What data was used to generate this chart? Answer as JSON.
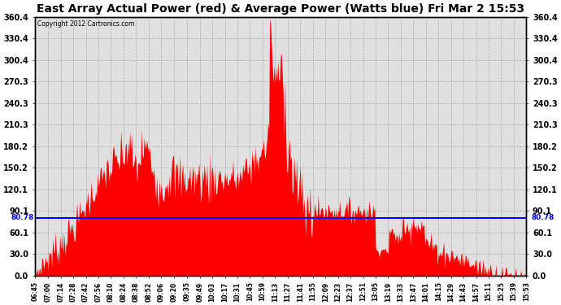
{
  "title": "East Array Actual Power (red) & Average Power (Watts blue) Fri Mar 2 15:53",
  "copyright": "Copyright 2012 Cartronics.com",
  "avg_power": 80.78,
  "ymin": 0.0,
  "ymax": 360.4,
  "yticks": [
    0.0,
    30.0,
    60.1,
    90.1,
    120.1,
    150.2,
    180.2,
    210.3,
    240.3,
    270.3,
    300.4,
    330.4,
    360.4
  ],
  "ytick_labels": [
    "0.0",
    "30.0",
    "60.1",
    "90.1",
    "120.1",
    "150.2",
    "180.2",
    "210.3",
    "240.3",
    "270.3",
    "300.4",
    "330.4",
    "360.4"
  ],
  "time_labels": [
    "06:45",
    "07:00",
    "07:14",
    "07:28",
    "07:42",
    "07:56",
    "08:10",
    "08:24",
    "08:38",
    "08:52",
    "09:06",
    "09:20",
    "09:35",
    "09:49",
    "10:03",
    "10:17",
    "10:31",
    "10:45",
    "10:59",
    "11:13",
    "11:27",
    "11:41",
    "11:55",
    "12:09",
    "12:23",
    "12:37",
    "12:51",
    "13:05",
    "13:19",
    "13:33",
    "13:47",
    "14:01",
    "14:15",
    "14:29",
    "14:43",
    "14:57",
    "15:11",
    "15:25",
    "15:39",
    "15:53"
  ],
  "line_color": "#0000ff",
  "fill_color": "#ff0000",
  "bg_color": "#ffffff",
  "grid_color": "#aaaaaa",
  "title_fontsize": 10,
  "avg_label": "80.78",
  "border_color": "#000000",
  "plot_bg": "#e0e0e0"
}
